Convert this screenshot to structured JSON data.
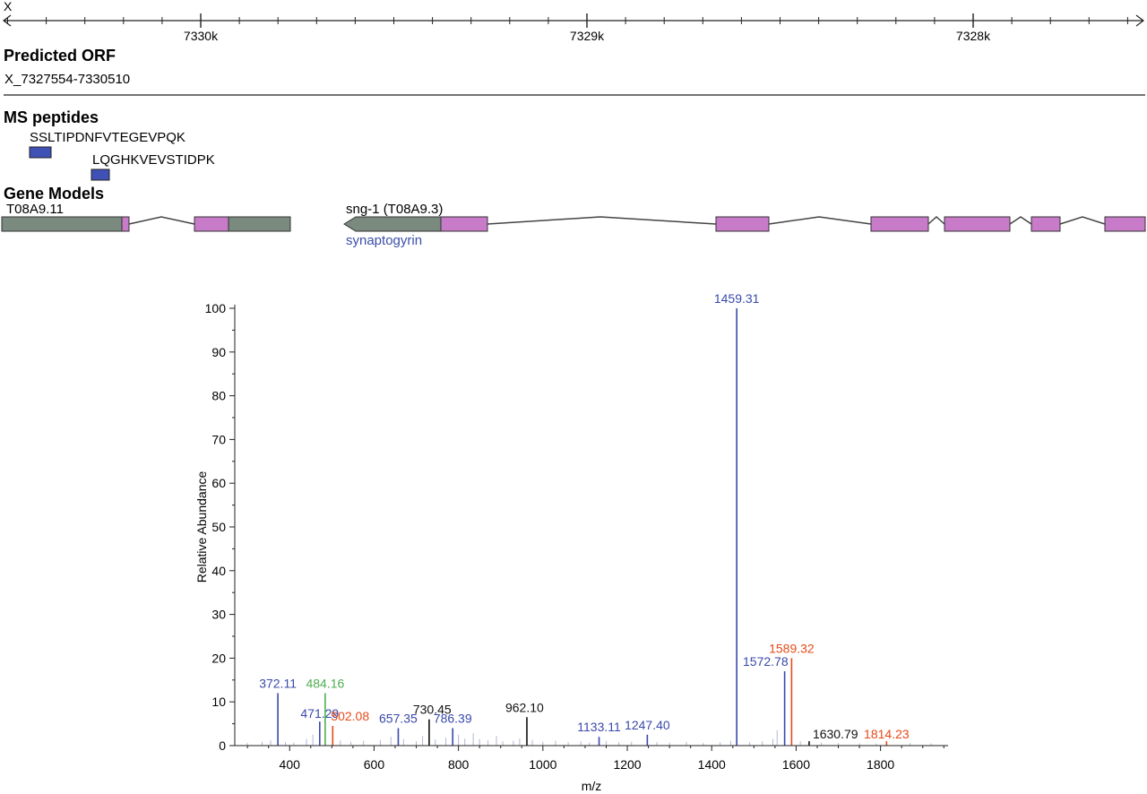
{
  "browser": {
    "chromosome": "X",
    "ruler_ticks": [
      {
        "pos": 7330000,
        "label": "7330k"
      },
      {
        "pos": 7329000,
        "label": "7329k"
      },
      {
        "pos": 7328000,
        "label": "7328k"
      }
    ],
    "predicted_orf": {
      "heading": "Predicted ORF",
      "name": "X_7327554-7330510"
    },
    "ms_peptides": {
      "heading": "MS peptides",
      "items": [
        {
          "sequence": "SSLTIPDNFVTEGEVPQK",
          "color": "#3f51b5"
        },
        {
          "sequence": "LQGHKVEVSTIDPK",
          "color": "#3f51b5"
        }
      ]
    },
    "gene_models": {
      "heading": "Gene Models",
      "genes": [
        {
          "name": "T08A9.11",
          "description": ""
        },
        {
          "name": "sng-1 (T08A9.3)",
          "description": "synaptogyrin"
        }
      ],
      "colors": {
        "utr": "#7a8a7e",
        "cds": "#c77bc9",
        "intron": "#444444",
        "description": "#3b4fa8"
      }
    }
  },
  "chart_data": {
    "type": "bar",
    "xlabel": "m/z",
    "ylabel": "Relative Abundance",
    "xlim": [
      270,
      1960
    ],
    "ylim": [
      0,
      100
    ],
    "xticks": [
      400,
      600,
      800,
      1000,
      1200,
      1400,
      1600,
      1800
    ],
    "yticks": [
      0,
      10,
      20,
      30,
      40,
      50,
      60,
      70,
      80,
      90,
      100
    ],
    "colors": {
      "b_ion": "#3949ab",
      "y_ion": "#e64a19",
      "green_ion": "#4caf50",
      "unassigned": "#111111",
      "noise": "#b0b8d8"
    },
    "labeled_peaks": [
      {
        "mz": 372.11,
        "intensity": 12,
        "label": "372.11",
        "ion": "b_ion"
      },
      {
        "mz": 471.29,
        "intensity": 5.5,
        "label": "471.29",
        "ion": "b_ion"
      },
      {
        "mz": 484.16,
        "intensity": 12,
        "label": "484.16",
        "ion": "green_ion"
      },
      {
        "mz": 502.08,
        "intensity": 4.5,
        "label": "502.08",
        "ion": "y_ion"
      },
      {
        "mz": 657.35,
        "intensity": 4,
        "label": "657.35",
        "ion": "b_ion"
      },
      {
        "mz": 730.45,
        "intensity": 6,
        "label": "730.45",
        "ion": "unassigned"
      },
      {
        "mz": 786.39,
        "intensity": 4,
        "label": "786.39",
        "ion": "b_ion"
      },
      {
        "mz": 962.1,
        "intensity": 6.5,
        "label": "962.10",
        "ion": "unassigned"
      },
      {
        "mz": 1133.11,
        "intensity": 2,
        "label": "1133.11",
        "ion": "b_ion"
      },
      {
        "mz": 1247.4,
        "intensity": 2.5,
        "label": "1247.40",
        "ion": "b_ion"
      },
      {
        "mz": 1459.31,
        "intensity": 100,
        "label": "1459.31",
        "ion": "b_ion"
      },
      {
        "mz": 1572.78,
        "intensity": 17,
        "label": "1572.78",
        "ion": "b_ion"
      },
      {
        "mz": 1589.32,
        "intensity": 20,
        "label": "1589.32",
        "ion": "y_ion"
      },
      {
        "mz": 1630.79,
        "intensity": 1,
        "label": "1630.79",
        "ion": "unassigned"
      },
      {
        "mz": 1814.23,
        "intensity": 1,
        "label": "1814.23",
        "ion": "y_ion"
      }
    ],
    "noise_peaks": [
      {
        "mz": 300,
        "intensity": 0.6
      },
      {
        "mz": 335,
        "intensity": 0.9
      },
      {
        "mz": 355,
        "intensity": 1.2
      },
      {
        "mz": 390,
        "intensity": 0.8
      },
      {
        "mz": 410,
        "intensity": 0.7
      },
      {
        "mz": 440,
        "intensity": 1.5
      },
      {
        "mz": 455,
        "intensity": 2.5
      },
      {
        "mz": 520,
        "intensity": 1.2
      },
      {
        "mz": 545,
        "intensity": 0.9
      },
      {
        "mz": 575,
        "intensity": 1.1
      },
      {
        "mz": 615,
        "intensity": 1.3
      },
      {
        "mz": 640,
        "intensity": 2.0
      },
      {
        "mz": 670,
        "intensity": 1.5
      },
      {
        "mz": 700,
        "intensity": 1.0
      },
      {
        "mz": 715,
        "intensity": 2.2
      },
      {
        "mz": 745,
        "intensity": 1.4
      },
      {
        "mz": 770,
        "intensity": 1.8
      },
      {
        "mz": 800,
        "intensity": 2.5
      },
      {
        "mz": 815,
        "intensity": 1.6
      },
      {
        "mz": 835,
        "intensity": 2.8
      },
      {
        "mz": 850,
        "intensity": 1.5
      },
      {
        "mz": 870,
        "intensity": 1.2
      },
      {
        "mz": 890,
        "intensity": 2.2
      },
      {
        "mz": 905,
        "intensity": 1.0
      },
      {
        "mz": 930,
        "intensity": 1.1
      },
      {
        "mz": 945,
        "intensity": 1.6
      },
      {
        "mz": 975,
        "intensity": 1.3
      },
      {
        "mz": 1000,
        "intensity": 0.9
      },
      {
        "mz": 1030,
        "intensity": 1.1
      },
      {
        "mz": 1060,
        "intensity": 0.8
      },
      {
        "mz": 1090,
        "intensity": 1.0
      },
      {
        "mz": 1110,
        "intensity": 0.7
      },
      {
        "mz": 1150,
        "intensity": 1.0
      },
      {
        "mz": 1180,
        "intensity": 0.8
      },
      {
        "mz": 1210,
        "intensity": 0.9
      },
      {
        "mz": 1270,
        "intensity": 0.8
      },
      {
        "mz": 1300,
        "intensity": 0.7
      },
      {
        "mz": 1340,
        "intensity": 0.9
      },
      {
        "mz": 1380,
        "intensity": 0.6
      },
      {
        "mz": 1420,
        "intensity": 0.8
      },
      {
        "mz": 1445,
        "intensity": 1.1
      },
      {
        "mz": 1490,
        "intensity": 0.8
      },
      {
        "mz": 1520,
        "intensity": 1.0
      },
      {
        "mz": 1545,
        "intensity": 1.5
      },
      {
        "mz": 1555,
        "intensity": 3.5
      },
      {
        "mz": 1610,
        "intensity": 1.0
      },
      {
        "mz": 1660,
        "intensity": 0.7
      },
      {
        "mz": 1700,
        "intensity": 0.6
      },
      {
        "mz": 1750,
        "intensity": 0.5
      },
      {
        "mz": 1790,
        "intensity": 0.5
      },
      {
        "mz": 1870,
        "intensity": 0.6
      },
      {
        "mz": 1920,
        "intensity": 0.5
      }
    ]
  }
}
